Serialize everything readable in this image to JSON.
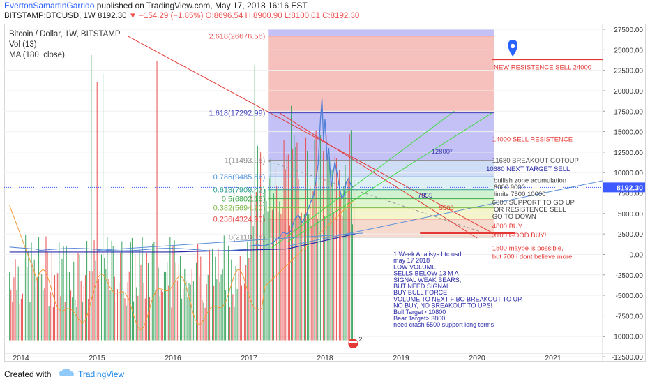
{
  "header": {
    "author": "EvertonSamartinGarrido",
    "published": "published on TradingView.com, May 17, 2018 16:16 EST",
    "symbol": "BITSTAMP:BTCUSD, 1W",
    "last": "8192.30",
    "change": "−154.29 (−1.85%)",
    "ohlc": "O:8696.54 H:8900.90 L:8100.01 C:8192.30"
  },
  "legend": {
    "title": "Bitcoin / Dollar, 1W, BITSTAMP",
    "vol": "Vol (13)",
    "ma": "MA (180, close)"
  },
  "footer": {
    "created": "Created with",
    "brand": "TradingView"
  },
  "colors": {
    "fib_red": "#f4b6b2",
    "fib_purple": "#b8b6f3",
    "fib_blue": "#c8d7f4",
    "fib_green": "#c9f0c9",
    "fib_yellow": "#f2f5c0",
    "price_line": "#4f7fd6",
    "vol_red": "#e84c4c",
    "vol_green": "#35a35a",
    "ma_orange": "#f59a3b",
    "ma_navy": "#2b2ba8",
    "trend_red": "#e53935",
    "trend_green": "#3ddc3d",
    "last_badge": "#3d5afe"
  },
  "chart_data": {
    "type": "line",
    "x_axis_labels": [
      "2014",
      "2015",
      "2016",
      "2017",
      "2018",
      "2019",
      "2020",
      "2021"
    ],
    "y_ticks": [
      "27500.00",
      "25000.00",
      "22500.00",
      "20000.00",
      "17500.00",
      "15000.00",
      "12500.00",
      "10000.00",
      "7500.00",
      "5000.00",
      "2500.00",
      "0.00",
      "-2500.00",
      "-5000.00",
      "-7500.00",
      "-10000.00",
      "-12500.00"
    ],
    "ylim": [
      -12500,
      27500
    ],
    "last_price": 8192.3,
    "last_price_label": "8192.30",
    "fib_levels": [
      {
        "label": "2.618(26676.56)",
        "value": 26676.56,
        "color": "#e64a4a"
      },
      {
        "label": "1.618(17292.99)",
        "value": 17292.99,
        "color": "#3f3fbf"
      },
      {
        "label": "1(11493.95)",
        "value": 11493.95,
        "color": "#888888"
      },
      {
        "label": "0.786(9485.86)",
        "value": 9485.86,
        "color": "#4a90d9"
      },
      {
        "label": "0.618(7909.42)",
        "value": 7909.42,
        "color": "#2e9e8e"
      },
      {
        "label": "0.5(6802.16)",
        "value": 6802.16,
        "color": "#3da84a"
      },
      {
        "label": "0.382(5694.90)",
        "value": 5694.9,
        "color": "#7fb84a"
      },
      {
        "label": "0.236(4324.90)",
        "value": 4324.9,
        "color": "#e64a4a"
      },
      {
        "label": "0(2110.38)",
        "value": 2110.38,
        "color": "#888888"
      }
    ],
    "price_series": [
      {
        "t": 2017.0,
        "v": 1000
      },
      {
        "t": 2017.1,
        "v": 1150
      },
      {
        "t": 2017.2,
        "v": 1050
      },
      {
        "t": 2017.3,
        "v": 1350
      },
      {
        "t": 2017.4,
        "v": 2100
      },
      {
        "t": 2017.45,
        "v": 2700
      },
      {
        "t": 2017.5,
        "v": 2500
      },
      {
        "t": 2017.55,
        "v": 2800
      },
      {
        "t": 2017.6,
        "v": 4300
      },
      {
        "t": 2017.65,
        "v": 4800
      },
      {
        "t": 2017.7,
        "v": 3900
      },
      {
        "t": 2017.75,
        "v": 4700
      },
      {
        "t": 2017.8,
        "v": 6100
      },
      {
        "t": 2017.85,
        "v": 7200
      },
      {
        "t": 2017.88,
        "v": 9000
      },
      {
        "t": 2017.91,
        "v": 11000
      },
      {
        "t": 2017.94,
        "v": 16500
      },
      {
        "t": 2017.96,
        "v": 19000
      },
      {
        "t": 2017.98,
        "v": 14000
      },
      {
        "t": 2018.0,
        "v": 16500
      },
      {
        "t": 2018.03,
        "v": 11500
      },
      {
        "t": 2018.05,
        "v": 13000
      },
      {
        "t": 2018.08,
        "v": 8200
      },
      {
        "t": 2018.1,
        "v": 9500
      },
      {
        "t": 2018.13,
        "v": 11300
      },
      {
        "t": 2018.16,
        "v": 9800
      },
      {
        "t": 2018.19,
        "v": 8200
      },
      {
        "t": 2018.22,
        "v": 6900
      },
      {
        "t": 2018.25,
        "v": 7200
      },
      {
        "t": 2018.28,
        "v": 8900
      },
      {
        "t": 2018.31,
        "v": 9300
      },
      {
        "t": 2018.34,
        "v": 8500
      },
      {
        "t": 2018.37,
        "v": 8192
      }
    ],
    "annotations": [
      {
        "text": "NEW RESISTENCE SELL 24000",
        "t": 2020.22,
        "v": 22600,
        "color": "#e53935"
      },
      {
        "text": "14000 SELL RESISTENCE",
        "t": 2020.2,
        "v": 13800,
        "color": "#e53935"
      },
      {
        "text": "12800*",
        "t": 2019.4,
        "v": 12300,
        "color": "#3a3ab0"
      },
      {
        "text": "11680 BREAKOUT GOTOUP",
        "t": 2020.2,
        "v": 11200,
        "color": "#555555"
      },
      {
        "text": "10680 NEXT TARGET  SELL",
        "t": 2020.12,
        "v": 10200,
        "color": "#2b2ba8"
      },
      {
        "text": "bullish zone acumulation",
        "t": 2020.22,
        "v": 8800,
        "color": "#444444"
      },
      {
        "text": "8000 9000",
        "t": 2020.22,
        "v": 7950,
        "color": "#444444"
      },
      {
        "text": "limits 7500 10000",
        "t": 2020.22,
        "v": 7100,
        "color": "#444444"
      },
      {
        "text": "6800 SUPPORT TO GO UP",
        "t": 2020.2,
        "v": 6100,
        "color": "#444444"
      },
      {
        "text": "OR RESISTENCE SELL",
        "t": 2020.22,
        "v": 5250,
        "color": "#444444"
      },
      {
        "text": "GO TO DOWN",
        "t": 2020.2,
        "v": 4400,
        "color": "#444444"
      },
      {
        "text": "7855",
        "t": 2019.22,
        "v": 6950,
        "color": "#2b2ba8"
      },
      {
        "text": "5500",
        "t": 2019.5,
        "v": 5400,
        "color": "#e53935"
      },
      {
        "text": "4800 BUY",
        "t": 2020.2,
        "v": 3200,
        "color": "#e53935"
      },
      {
        "text": "3100 GOOD BUY!",
        "t": 2020.2,
        "v": 2100,
        "color": "#e53935"
      },
      {
        "text": "1800 maybe is possible,",
        "t": 2020.2,
        "v": 500,
        "color": "#e53935"
      },
      {
        "text": " but 700 i dont believe more",
        "t": 2020.2,
        "v": -500,
        "color": "#e53935"
      }
    ],
    "notes": [
      "1 Week Analisys btc usd",
      "may 17 2018",
      "LOW VOLUME",
      "SELLS BELOW 13 M A",
      "SIGNAL WEAK BEARS,",
      "BUT NEED SIGNAL",
      " BUY BULL FORCE",
      "VOLUME TO NEXT FIBO BREAKOUT TO UP,",
      " NO BUY,  NO BREAKOUT TO UPS!",
      "Bull Target> 10800",
      " Bear Target> 3800,",
      "need crash 5500 support long terms"
    ]
  }
}
